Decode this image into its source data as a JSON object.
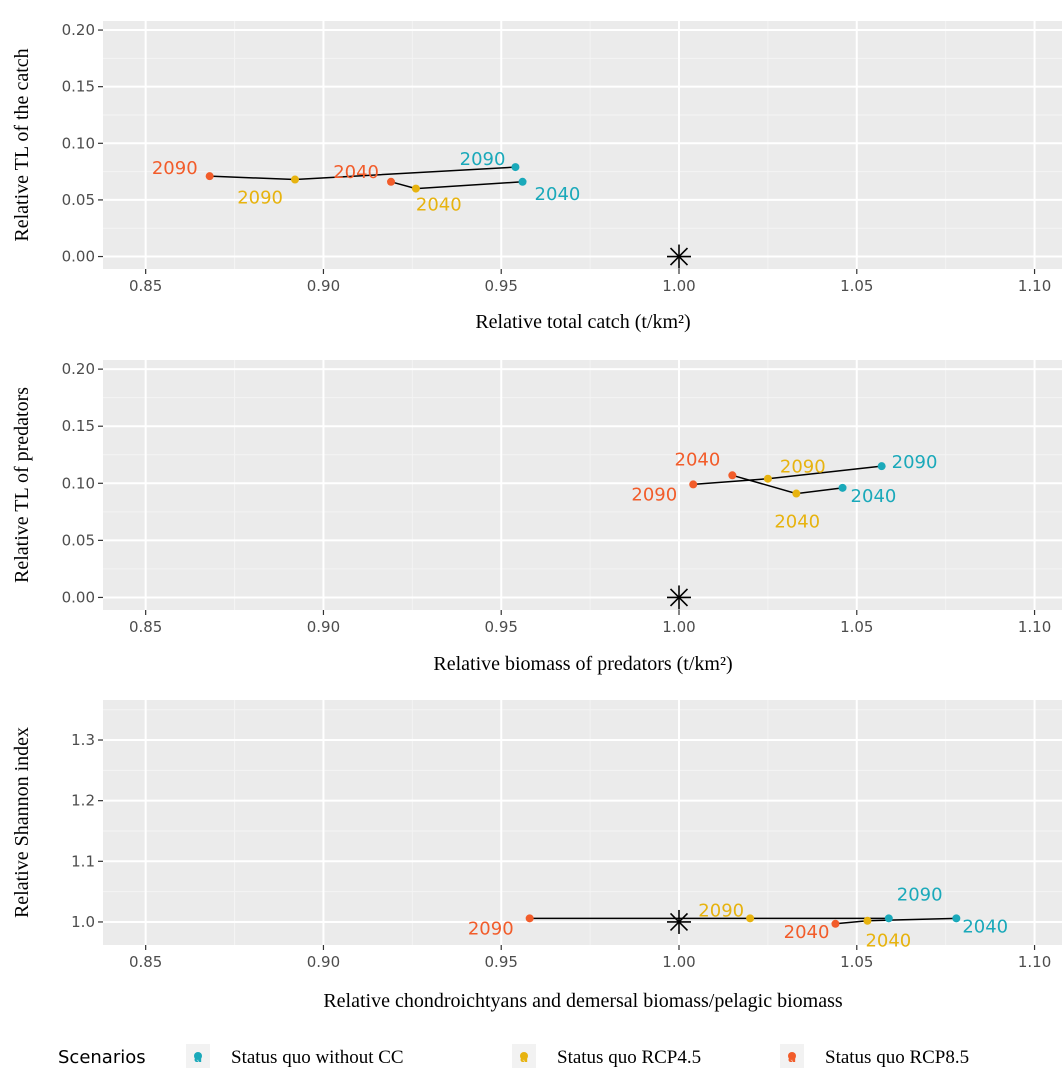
{
  "colors": {
    "panel_bg": "#EBEBEB",
    "grid_major": "#FFFFFF",
    "grid_minor": "#F4F4F4",
    "status_quo_without_cc": "#1AA9BA",
    "status_quo_rcp45": "#E7B30F",
    "status_quo_rcp85": "#F25C2A"
  },
  "legend": {
    "title": "Scenarios",
    "items": [
      {
        "label": "Status quo without CC",
        "color": "#1AA9BA",
        "icon": "point-letter-a-icon"
      },
      {
        "label": "Status quo RCP4.5",
        "color": "#E7B30F",
        "icon": "point-letter-a-icon"
      },
      {
        "label": "Status quo RCP8.5",
        "color": "#F25C2A",
        "icon": "point-letter-a-icon"
      }
    ]
  },
  "chart_data": [
    {
      "type": "scatter",
      "xlabel": "Relative total catch (t/km²)",
      "ylabel": "Relative TL of the catch",
      "xlim": [
        0.838,
        1.108
      ],
      "ylim": [
        -0.011,
        0.208
      ],
      "xticks": [
        "0.85",
        "0.90",
        "0.95",
        "1.00",
        "1.05",
        "1.10"
      ],
      "yticks": [
        "0.00",
        "0.05",
        "0.10",
        "0.15",
        "0.20"
      ],
      "reference_point": {
        "x": 1.0,
        "y": 0.0,
        "marker": "asterisk"
      },
      "series": [
        {
          "name": "Status quo without CC",
          "points": [
            {
              "x": 0.956,
              "y": 0.066,
              "label": "2040"
            },
            {
              "x": 0.954,
              "y": 0.079,
              "label": "2090"
            }
          ]
        },
        {
          "name": "Status quo RCP4.5",
          "points": [
            {
              "x": 0.926,
              "y": 0.06,
              "label": "2040"
            },
            {
              "x": 0.892,
              "y": 0.068,
              "label": "2090"
            }
          ]
        },
        {
          "name": "Status quo RCP8.5",
          "points": [
            {
              "x": 0.919,
              "y": 0.066,
              "label": "2040"
            },
            {
              "x": 0.868,
              "y": 0.071,
              "label": "2090"
            }
          ]
        }
      ],
      "lines": [
        [
          {
            "x": 0.868,
            "y": 0.071
          },
          {
            "x": 0.892,
            "y": 0.068
          },
          {
            "x": 0.954,
            "y": 0.079
          }
        ],
        [
          {
            "x": 0.919,
            "y": 0.066
          },
          {
            "x": 0.926,
            "y": 0.06
          },
          {
            "x": 0.956,
            "y": 0.066
          }
        ]
      ]
    },
    {
      "type": "scatter",
      "xlabel": "Relative biomass of predators (t/km²)",
      "ylabel": "Relative TL of predators",
      "xlim": [
        0.838,
        1.108
      ],
      "ylim": [
        -0.011,
        0.208
      ],
      "xticks": [
        "0.85",
        "0.90",
        "0.95",
        "1.00",
        "1.05",
        "1.10"
      ],
      "yticks": [
        "0.00",
        "0.05",
        "0.10",
        "0.15",
        "0.20"
      ],
      "reference_point": {
        "x": 1.0,
        "y": 0.0,
        "marker": "asterisk"
      },
      "series": [
        {
          "name": "Status quo without CC",
          "points": [
            {
              "x": 1.046,
              "y": 0.096,
              "label": "2040"
            },
            {
              "x": 1.057,
              "y": 0.115,
              "label": "2090"
            }
          ]
        },
        {
          "name": "Status quo RCP4.5",
          "points": [
            {
              "x": 1.033,
              "y": 0.091,
              "label": "2040"
            },
            {
              "x": 1.025,
              "y": 0.104,
              "label": "2090"
            }
          ]
        },
        {
          "name": "Status quo RCP8.5",
          "points": [
            {
              "x": 1.015,
              "y": 0.107,
              "label": "2040"
            },
            {
              "x": 1.004,
              "y": 0.099,
              "label": "2090"
            }
          ]
        }
      ],
      "lines": [
        [
          {
            "x": 1.004,
            "y": 0.099
          },
          {
            "x": 1.025,
            "y": 0.104
          },
          {
            "x": 1.057,
            "y": 0.115
          }
        ],
        [
          {
            "x": 1.015,
            "y": 0.107
          },
          {
            "x": 1.033,
            "y": 0.091
          },
          {
            "x": 1.046,
            "y": 0.096
          }
        ]
      ]
    },
    {
      "type": "scatter",
      "xlabel": "Relative chondroichtyans and demersal biomass/pelagic biomass",
      "ylabel": "Relative Shannon index",
      "xlim": [
        0.838,
        1.108
      ],
      "ylim": [
        0.962,
        1.366
      ],
      "xticks": [
        "0.85",
        "0.90",
        "0.95",
        "1.00",
        "1.05",
        "1.10"
      ],
      "yticks": [
        "1.0",
        "1.1",
        "1.2",
        "1.3"
      ],
      "reference_point": {
        "x": 1.0,
        "y": 1.0,
        "marker": "asterisk"
      },
      "series": [
        {
          "name": "Status quo without CC",
          "points": [
            {
              "x": 1.078,
              "y": 1.006,
              "label": "2040"
            },
            {
              "x": 1.059,
              "y": 1.006,
              "label": "2090"
            }
          ]
        },
        {
          "name": "Status quo RCP4.5",
          "points": [
            {
              "x": 1.053,
              "y": 1.002,
              "label": "2040"
            },
            {
              "x": 1.02,
              "y": 1.006,
              "label": "2090"
            }
          ]
        },
        {
          "name": "Status quo RCP8.5",
          "points": [
            {
              "x": 1.044,
              "y": 0.997,
              "label": "2040"
            },
            {
              "x": 0.958,
              "y": 1.006,
              "label": "2090"
            }
          ]
        }
      ],
      "lines": [
        [
          {
            "x": 0.958,
            "y": 1.006
          },
          {
            "x": 1.02,
            "y": 1.006
          },
          {
            "x": 1.059,
            "y": 1.006
          }
        ],
        [
          {
            "x": 1.044,
            "y": 0.997
          },
          {
            "x": 1.053,
            "y": 1.002
          },
          {
            "x": 1.078,
            "y": 1.006
          }
        ]
      ]
    }
  ]
}
